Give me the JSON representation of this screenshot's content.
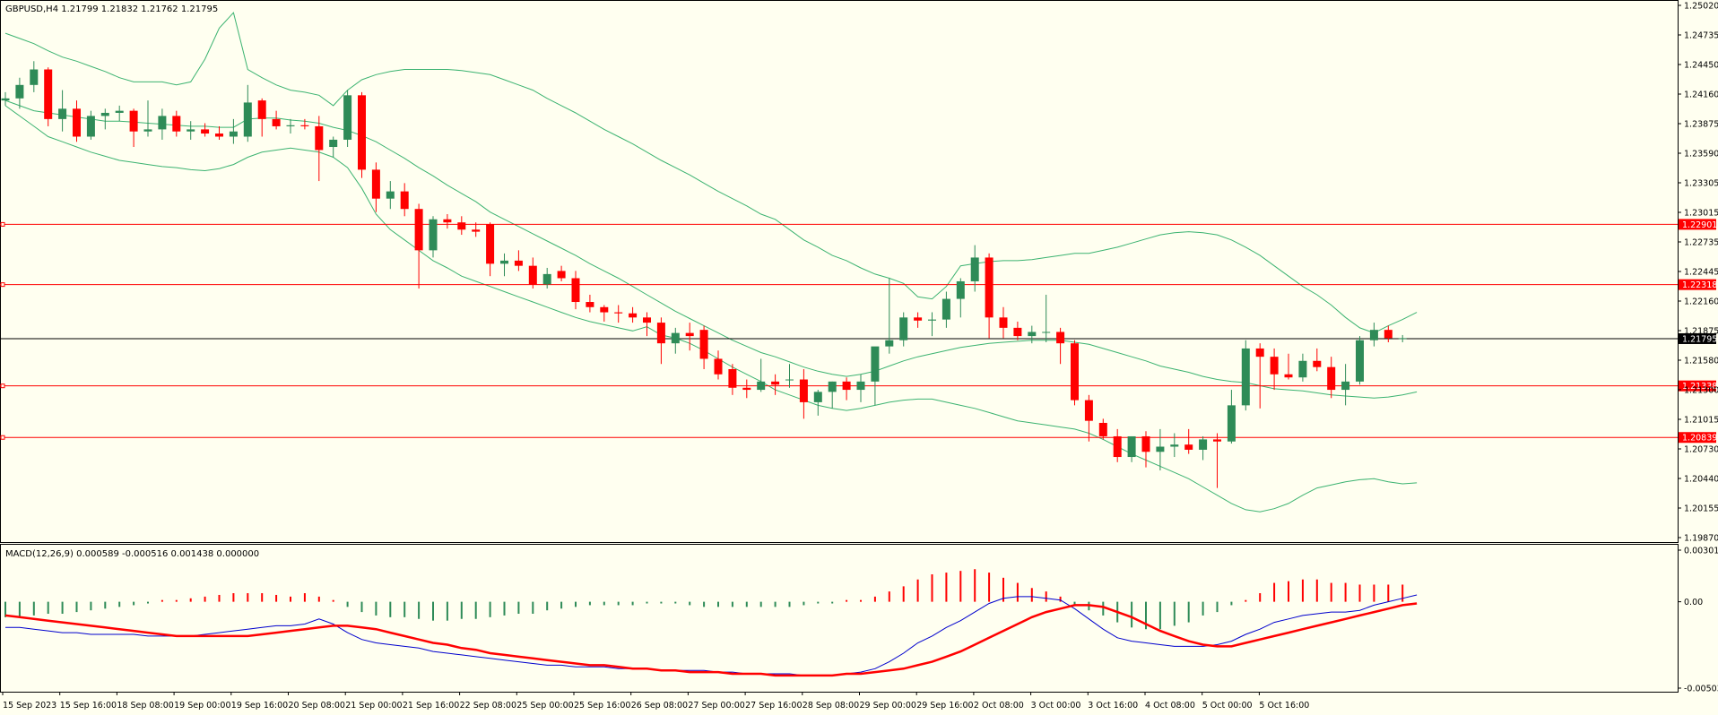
{
  "colors": {
    "background": "#fffff0",
    "bull": "#2e8b57",
    "bear": "#ff0000",
    "band": "#3cb371",
    "macd_line": "#0000cd",
    "signal_line": "#ff0000",
    "level_line": "#ff0000",
    "price_line": "#000000",
    "frame": "#000000"
  },
  "header": {
    "main_label": "GBPUSD,H4  1.21799 1.21832 1.21762 1.21795",
    "macd_label": "MACD(12,26,9) 0.000589 -0.000516 0.001438 0.000000"
  },
  "price_axis": {
    "labels": [
      "1.25020",
      "1.24735",
      "1.24450",
      "1.24160",
      "1.23875",
      "1.23590",
      "1.23305",
      "1.23015",
      "1.22735",
      "1.22445",
      "1.22160",
      "1.21875",
      "1.21580",
      "1.21300",
      "1.21015",
      "1.20730",
      "1.20440",
      "1.20155",
      "1.19870"
    ],
    "range": [
      1.1987,
      1.2502
    ]
  },
  "macd_axis": {
    "labels": [
      "0.00301",
      "0.00",
      "-0.005036"
    ],
    "range": [
      -0.005036,
      0.00301
    ]
  },
  "levels": [
    {
      "value": 1.22901,
      "label": "1.22901"
    },
    {
      "value": 1.22318,
      "label": "1.22318"
    },
    {
      "value": 1.21338,
      "label": "1.21338"
    },
    {
      "value": 1.20839,
      "label": "1.20839"
    }
  ],
  "current_price": {
    "value": 1.21795,
    "label": "1.21795"
  },
  "time_axis": {
    "labels": [
      "15 Sep 2023",
      "15 Sep 16:00",
      "18 Sep 08:00",
      "19 Sep 00:00",
      "19 Sep 16:00",
      "20 Sep 08:00",
      "21 Sep 00:00",
      "21 Sep 16:00",
      "22 Sep 08:00",
      "25 Sep 00:00",
      "25 Sep 16:00",
      "26 Sep 08:00",
      "27 Sep 00:00",
      "27 Sep 16:00",
      "28 Sep 08:00",
      "29 Sep 00:00",
      "29 Sep 16:00",
      "2 Oct 08:00",
      "3 Oct 00:00",
      "3 Oct 16:00",
      "4 Oct 08:00",
      "5 Oct 00:00",
      "5 Oct 16:00"
    ]
  },
  "chart_data": {
    "type": "candlestick",
    "symbol": "GBPUSD",
    "timeframe": "H4",
    "ylim": [
      1.1987,
      1.2502
    ],
    "ohlc": [
      [
        1.241,
        1.2418,
        1.2405,
        1.2412
      ],
      [
        1.2412,
        1.2432,
        1.2402,
        1.2425
      ],
      [
        1.2425,
        1.2448,
        1.2418,
        1.244
      ],
      [
        1.244,
        1.2442,
        1.2385,
        1.2392
      ],
      [
        1.2392,
        1.242,
        1.238,
        1.2402
      ],
      [
        1.2402,
        1.241,
        1.237,
        1.2375
      ],
      [
        1.2375,
        1.24,
        1.2372,
        1.2395
      ],
      [
        1.2395,
        1.2402,
        1.2382,
        1.2398
      ],
      [
        1.2398,
        1.2405,
        1.239,
        1.24
      ],
      [
        1.24,
        1.2402,
        1.2365,
        1.238
      ],
      [
        1.238,
        1.241,
        1.2375,
        1.2382
      ],
      [
        1.2382,
        1.2402,
        1.2372,
        1.2395
      ],
      [
        1.2395,
        1.24,
        1.2375,
        1.238
      ],
      [
        1.238,
        1.239,
        1.2372,
        1.2382
      ],
      [
        1.2382,
        1.2388,
        1.2375,
        1.2378
      ],
      [
        1.2378,
        1.2385,
        1.2372,
        1.2375
      ],
      [
        1.2375,
        1.2392,
        1.2368,
        1.238
      ],
      [
        1.2375,
        1.2425,
        1.237,
        1.2408
      ],
      [
        1.241,
        1.2412,
        1.2375,
        1.2392
      ],
      [
        1.2392,
        1.24,
        1.2382,
        1.2385
      ],
      [
        1.2385,
        1.2392,
        1.2378,
        1.2386
      ],
      [
        1.2386,
        1.2392,
        1.2382,
        1.2385
      ],
      [
        1.2385,
        1.2395,
        1.2332,
        1.2362
      ],
      [
        1.2365,
        1.2375,
        1.2355,
        1.2372
      ],
      [
        1.2372,
        1.242,
        1.2365,
        1.2415
      ],
      [
        1.2415,
        1.2418,
        1.2335,
        1.2343
      ],
      [
        1.2343,
        1.235,
        1.2302,
        1.2315
      ],
      [
        1.2315,
        1.2332,
        1.2305,
        1.2322
      ],
      [
        1.2322,
        1.233,
        1.2298,
        1.2305
      ],
      [
        1.2305,
        1.231,
        1.2228,
        1.2265
      ],
      [
        1.2265,
        1.2298,
        1.2258,
        1.2295
      ],
      [
        1.2295,
        1.23,
        1.2286,
        1.2292
      ],
      [
        1.2292,
        1.2298,
        1.228,
        1.2285
      ],
      [
        1.2285,
        1.2292,
        1.2278,
        1.2283
      ],
      [
        1.229,
        1.2292,
        1.224,
        1.2252
      ],
      [
        1.2252,
        1.2262,
        1.224,
        1.2255
      ],
      [
        1.2255,
        1.2265,
        1.2245,
        1.225
      ],
      [
        1.225,
        1.2258,
        1.2228,
        1.2232
      ],
      [
        1.2232,
        1.2248,
        1.2228,
        1.2242
      ],
      [
        1.2245,
        1.225,
        1.2235,
        1.2238
      ],
      [
        1.2238,
        1.2245,
        1.2208,
        1.2215
      ],
      [
        1.2215,
        1.2222,
        1.2205,
        1.221
      ],
      [
        1.221,
        1.2212,
        1.2196,
        1.2205
      ],
      [
        1.2205,
        1.2212,
        1.2195,
        1.2204
      ],
      [
        1.2204,
        1.221,
        1.2195,
        1.22
      ],
      [
        1.22,
        1.2205,
        1.2182,
        1.2195
      ],
      [
        1.2195,
        1.22,
        1.2155,
        1.2175
      ],
      [
        1.2175,
        1.219,
        1.2165,
        1.2185
      ],
      [
        1.2185,
        1.2195,
        1.2168,
        1.2182
      ],
      [
        1.2188,
        1.2192,
        1.215,
        1.216
      ],
      [
        1.216,
        1.2168,
        1.214,
        1.2145
      ],
      [
        1.215,
        1.2155,
        1.2125,
        1.2132
      ],
      [
        1.2132,
        1.214,
        1.2122,
        1.213
      ],
      [
        1.213,
        1.216,
        1.2128,
        1.2138
      ],
      [
        1.2138,
        1.2145,
        1.2125,
        1.2135
      ],
      [
        1.214,
        1.2155,
        1.2132,
        1.214
      ],
      [
        1.214,
        1.215,
        1.2102,
        1.2118
      ],
      [
        1.2118,
        1.213,
        1.2105,
        1.2128
      ],
      [
        1.2128,
        1.2138,
        1.2112,
        1.2138
      ],
      [
        1.2138,
        1.2142,
        1.212,
        1.213
      ],
      [
        1.213,
        1.2145,
        1.2118,
        1.2138
      ],
      [
        1.2138,
        1.217,
        1.2115,
        1.2172
      ],
      [
        1.2172,
        1.2238,
        1.2165,
        1.2178
      ],
      [
        1.2178,
        1.2205,
        1.2172,
        1.22
      ],
      [
        1.22,
        1.2205,
        1.219,
        1.2197
      ],
      [
        1.2197,
        1.2205,
        1.2182,
        1.2198
      ],
      [
        1.2198,
        1.2225,
        1.219,
        1.2218
      ],
      [
        1.2218,
        1.2238,
        1.22,
        1.2235
      ],
      [
        1.2235,
        1.227,
        1.2225,
        1.2258
      ],
      [
        1.2258,
        1.2262,
        1.218,
        1.22
      ],
      [
        1.22,
        1.221,
        1.218,
        1.219
      ],
      [
        1.219,
        1.2196,
        1.2178,
        1.2182
      ],
      [
        1.2182,
        1.2192,
        1.2175,
        1.2186
      ],
      [
        1.2186,
        1.2222,
        1.2176,
        1.2186
      ],
      [
        1.2186,
        1.219,
        1.2155,
        1.2175
      ],
      [
        1.2175,
        1.2178,
        1.2115,
        1.212
      ],
      [
        1.212,
        1.2125,
        1.208,
        1.21
      ],
      [
        1.2098,
        1.2102,
        1.2082,
        1.2085
      ],
      [
        1.2085,
        1.2092,
        1.206,
        1.2065
      ],
      [
        1.2065,
        1.2085,
        1.206,
        1.2085
      ],
      [
        1.2085,
        1.209,
        1.2055,
        1.207
      ],
      [
        1.207,
        1.2092,
        1.2052,
        1.2075
      ],
      [
        1.2075,
        1.2088,
        1.2065,
        1.2077
      ],
      [
        1.2077,
        1.2092,
        1.2068,
        1.2072
      ],
      [
        1.2072,
        1.2085,
        1.2062,
        1.2082
      ],
      [
        1.2082,
        1.2088,
        1.2035,
        1.208
      ],
      [
        1.208,
        1.213,
        1.2078,
        1.2115
      ],
      [
        1.2115,
        1.2178,
        1.211,
        1.217
      ],
      [
        1.217,
        1.2175,
        1.2112,
        1.2162
      ],
      [
        1.2162,
        1.217,
        1.213,
        1.2145
      ],
      [
        1.2145,
        1.2165,
        1.214,
        1.2142
      ],
      [
        1.2142,
        1.2165,
        1.2138,
        1.2158
      ],
      [
        1.2158,
        1.217,
        1.2148,
        1.2152
      ],
      [
        1.2152,
        1.2162,
        1.2122,
        1.213
      ],
      [
        1.213,
        1.2155,
        1.2115,
        1.2138
      ],
      [
        1.2138,
        1.2182,
        1.2135,
        1.2178
      ],
      [
        1.2178,
        1.2195,
        1.2172,
        1.2188
      ],
      [
        1.2188,
        1.2192,
        1.2176,
        1.218
      ],
      [
        1.218,
        1.2183,
        1.2176,
        1.218
      ]
    ],
    "bollinger": {
      "upper": [
        1.2475,
        1.247,
        1.2465,
        1.2458,
        1.2452,
        1.2448,
        1.2443,
        1.2438,
        1.2432,
        1.2428,
        1.2428,
        1.2428,
        1.2425,
        1.2428,
        1.245,
        1.248,
        1.2495,
        1.244,
        1.2432,
        1.2425,
        1.242,
        1.2418,
        1.2415,
        1.2405,
        1.242,
        1.243,
        1.2435,
        1.2438,
        1.244,
        1.244,
        1.244,
        1.244,
        1.2439,
        1.2437,
        1.2435,
        1.243,
        1.2425,
        1.242,
        1.2412,
        1.2405,
        1.2398,
        1.239,
        1.2382,
        1.2375,
        1.2368,
        1.236,
        1.2352,
        1.2345,
        1.2338,
        1.233,
        1.2322,
        1.2315,
        1.2308,
        1.23,
        1.2295,
        1.2285,
        1.2275,
        1.2268,
        1.226,
        1.2255,
        1.2248,
        1.2242,
        1.2238,
        1.2233,
        1.222,
        1.2218,
        1.223,
        1.225,
        1.2252,
        1.2254,
        1.2255,
        1.2255,
        1.2256,
        1.2258,
        1.226,
        1.2262,
        1.2262,
        1.2265,
        1.2268,
        1.2272,
        1.2276,
        1.228,
        1.2282,
        1.2283,
        1.2282,
        1.228,
        1.2275,
        1.2268,
        1.226,
        1.225,
        1.224,
        1.223,
        1.2222,
        1.2212,
        1.22,
        1.219,
        1.2185,
        1.2192,
        1.2198,
        1.2205
      ],
      "middle": [
        1.241,
        1.2405,
        1.24,
        1.2398,
        1.2396,
        1.2394,
        1.2392,
        1.239,
        1.239,
        1.2389,
        1.2388,
        1.2387,
        1.2386,
        1.2385,
        1.2385,
        1.2384,
        1.2384,
        1.2392,
        1.2393,
        1.2393,
        1.2391,
        1.239,
        1.2388,
        1.2384,
        1.2381,
        1.2376,
        1.237,
        1.2362,
        1.2354,
        1.2345,
        1.2337,
        1.2328,
        1.232,
        1.2312,
        1.2302,
        1.2295,
        1.2288,
        1.2281,
        1.2274,
        1.2267,
        1.226,
        1.2252,
        1.2245,
        1.2238,
        1.223,
        1.2222,
        1.2214,
        1.2206,
        1.2199,
        1.2192,
        1.2185,
        1.2178,
        1.2172,
        1.2166,
        1.2162,
        1.2157,
        1.2152,
        1.2148,
        1.2145,
        1.2143,
        1.2145,
        1.2148,
        1.2153,
        1.2158,
        1.2162,
        1.2165,
        1.2168,
        1.2171,
        1.2173,
        1.2175,
        1.2176,
        1.2177,
        1.2178,
        1.2178,
        1.2178,
        1.2176,
        1.2174,
        1.217,
        1.2166,
        1.2162,
        1.2158,
        1.2153,
        1.215,
        1.2147,
        1.2143,
        1.214,
        1.2138,
        1.2137,
        1.2134,
        1.2131,
        1.213,
        1.2129,
        1.2127,
        1.2125,
        1.2124,
        1.2123,
        1.2122,
        1.2123,
        1.2125,
        1.2128
      ],
      "lower": [
        1.2405,
        1.2395,
        1.2385,
        1.2375,
        1.237,
        1.2365,
        1.236,
        1.2356,
        1.2352,
        1.235,
        1.2348,
        1.2346,
        1.2345,
        1.2343,
        1.2342,
        1.2344,
        1.2348,
        1.2355,
        1.236,
        1.2362,
        1.2364,
        1.2362,
        1.236,
        1.2355,
        1.2345,
        1.2325,
        1.23,
        1.2285,
        1.2275,
        1.2265,
        1.2255,
        1.2248,
        1.224,
        1.2235,
        1.223,
        1.2225,
        1.222,
        1.2215,
        1.221,
        1.2205,
        1.22,
        1.2196,
        1.2193,
        1.219,
        1.2187,
        1.2191,
        1.2183,
        1.218,
        1.2175,
        1.2168,
        1.216,
        1.2152,
        1.2145,
        1.2138,
        1.213,
        1.2125,
        1.212,
        1.2115,
        1.2112,
        1.211,
        1.2112,
        1.2115,
        1.2118,
        1.212,
        1.2121,
        1.2121,
        1.2118,
        1.2115,
        1.2112,
        1.2108,
        1.2104,
        1.21,
        1.2098,
        1.2096,
        1.2094,
        1.2092,
        1.2088,
        1.2082,
        1.2075,
        1.2068,
        1.2062,
        1.2056,
        1.205,
        1.2044,
        1.2036,
        1.2028,
        1.202,
        1.2014,
        1.2012,
        1.2015,
        1.202,
        1.2028,
        1.2035,
        1.2038,
        1.2041,
        1.2043,
        1.2044,
        1.2041,
        1.2039,
        1.204
      ]
    },
    "macd": {
      "histogram": [
        -0.0009,
        -0.0009,
        -0.0008,
        -0.0007,
        -0.0007,
        -0.0006,
        -0.0005,
        -0.0004,
        -0.0003,
        -0.0002,
        -0.0001,
        0.0001,
        0.0001,
        0.0002,
        0.0003,
        0.0004,
        0.0005,
        0.0005,
        0.0005,
        0.0004,
        0.0003,
        0.0005,
        0.0003,
        0.0001,
        -0.0003,
        -0.0006,
        -0.0008,
        -0.0009,
        -0.0009,
        -0.001,
        -0.0011,
        -0.0011,
        -0.001,
        -0.001,
        -0.0009,
        -0.0008,
        -0.0007,
        -0.0007,
        -0.0005,
        -0.0004,
        -0.0003,
        -0.0002,
        -0.0002,
        -0.0002,
        -0.0002,
        -0.0001,
        -0.0001,
        -0.0001,
        -0.0002,
        -0.0003,
        -0.0003,
        -0.0003,
        -0.0003,
        -0.0003,
        -0.0003,
        -0.0003,
        -0.0002,
        -0.0001,
        -0.0001,
        0.0001,
        0.0001,
        0.0003,
        0.0006,
        0.0009,
        0.0013,
        0.0016,
        0.0017,
        0.0018,
        0.0019,
        0.0017,
        0.0014,
        0.0011,
        0.0008,
        0.0006,
        0.0003,
        -0.0002,
        -0.0005,
        -0.0008,
        -0.0012,
        -0.0015,
        -0.0016,
        -0.0016,
        -0.0014,
        -0.0012,
        -0.0008,
        -0.0006,
        -0.0002,
        0.0001,
        0.0005,
        0.0011,
        0.0012,
        0.0013,
        0.0013,
        0.0011,
        0.0011,
        0.001,
        0.001,
        0.001,
        0.001
      ],
      "macd_line": [
        -0.0015,
        -0.0015,
        -0.0016,
        -0.0017,
        -0.0018,
        -0.0018,
        -0.0019,
        -0.0019,
        -0.0019,
        -0.0019,
        -0.002,
        -0.002,
        -0.002,
        -0.002,
        -0.0019,
        -0.0018,
        -0.0017,
        -0.0016,
        -0.0015,
        -0.0014,
        -0.0014,
        -0.0013,
        -0.001,
        -0.0013,
        -0.0018,
        -0.0022,
        -0.0024,
        -0.0025,
        -0.0026,
        -0.0027,
        -0.0029,
        -0.003,
        -0.0031,
        -0.0032,
        -0.0033,
        -0.0034,
        -0.0035,
        -0.0036,
        -0.0037,
        -0.0037,
        -0.0038,
        -0.0038,
        -0.0038,
        -0.0039,
        -0.0039,
        -0.0039,
        -0.004,
        -0.004,
        -0.004,
        -0.004,
        -0.0041,
        -0.0041,
        -0.0042,
        -0.0042,
        -0.0042,
        -0.0042,
        -0.0043,
        -0.0043,
        -0.0043,
        -0.0042,
        -0.0041,
        -0.0039,
        -0.0035,
        -0.003,
        -0.0024,
        -0.002,
        -0.0015,
        -0.0011,
        -0.0006,
        -0.0001,
        0.0002,
        0.0003,
        0.0003,
        0.0002,
        0.0001,
        -0.0004,
        -0.001,
        -0.0016,
        -0.0021,
        -0.0023,
        -0.0024,
        -0.0025,
        -0.0026,
        -0.0026,
        -0.0026,
        -0.0025,
        -0.0023,
        -0.0019,
        -0.0016,
        -0.0012,
        -0.001,
        -0.0008,
        -0.0007,
        -0.0006,
        -0.0006,
        -0.0005,
        -0.0002,
        0.0,
        0.0002,
        0.0004
      ],
      "signal_line": [
        -0.0008,
        -0.0009,
        -0.001,
        -0.0011,
        -0.0012,
        -0.0013,
        -0.0014,
        -0.0015,
        -0.0016,
        -0.0017,
        -0.0018,
        -0.0019,
        -0.002,
        -0.002,
        -0.002,
        -0.002,
        -0.002,
        -0.002,
        -0.0019,
        -0.0018,
        -0.0017,
        -0.0016,
        -0.0015,
        -0.0014,
        -0.0014,
        -0.0015,
        -0.0016,
        -0.0018,
        -0.002,
        -0.0022,
        -0.0024,
        -0.0025,
        -0.0027,
        -0.0028,
        -0.003,
        -0.0031,
        -0.0032,
        -0.0033,
        -0.0034,
        -0.0035,
        -0.0036,
        -0.0037,
        -0.0037,
        -0.0038,
        -0.0039,
        -0.0039,
        -0.004,
        -0.004,
        -0.0041,
        -0.0041,
        -0.0041,
        -0.0042,
        -0.0042,
        -0.0042,
        -0.0043,
        -0.0043,
        -0.0043,
        -0.0043,
        -0.0043,
        -0.0042,
        -0.0042,
        -0.0041,
        -0.004,
        -0.0039,
        -0.0037,
        -0.0035,
        -0.0032,
        -0.0029,
        -0.0025,
        -0.0021,
        -0.0017,
        -0.0013,
        -0.0009,
        -0.0006,
        -0.0004,
        -0.0002,
        -0.0002,
        -0.0003,
        -0.0006,
        -0.0009,
        -0.0013,
        -0.0017,
        -0.002,
        -0.0023,
        -0.0025,
        -0.0026,
        -0.0026,
        -0.0024,
        -0.0022,
        -0.002,
        -0.0018,
        -0.0016,
        -0.0014,
        -0.0012,
        -0.001,
        -0.0008,
        -0.0006,
        -0.0004,
        -0.0002,
        -0.0001
      ]
    }
  }
}
